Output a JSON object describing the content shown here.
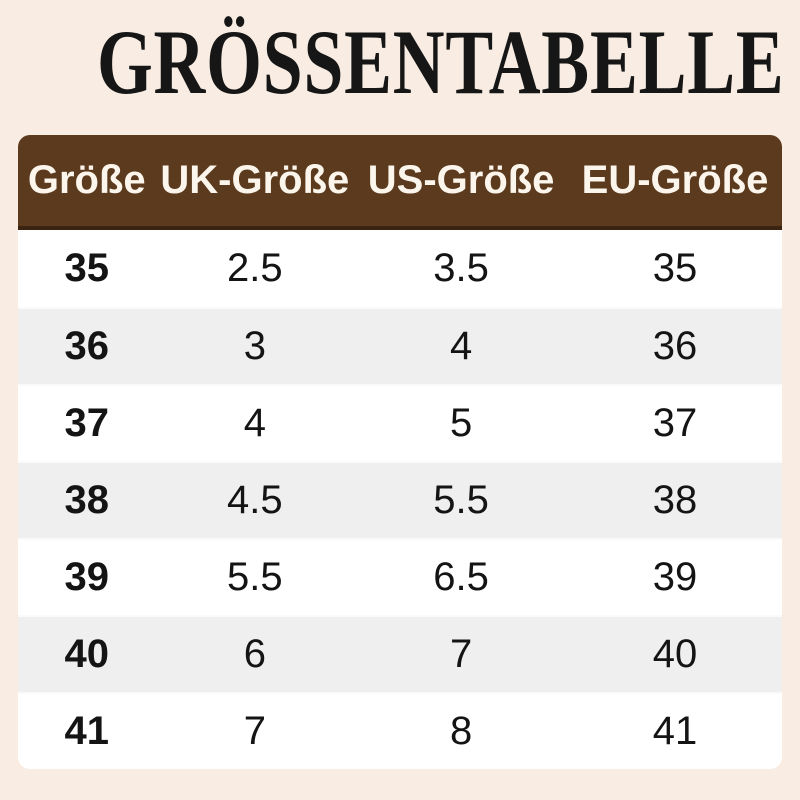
{
  "title": "GRÖSSENTABELLE",
  "colors": {
    "background": "#f8ece3",
    "header_bg": "#5b3a1e",
    "header_border_bottom": "#3a2411",
    "header_text": "#fbf5ec",
    "row_bg": "#ffffff",
    "row_alt_bg": "#efefef",
    "body_text": "#141414",
    "title_text": "#161616"
  },
  "chart_data": {
    "type": "table",
    "title": "GRÖSSENTABELLE",
    "columns": [
      "Größe",
      "UK-Größe",
      "US-Größe",
      "EU-Größe"
    ],
    "rows": [
      [
        "35",
        "2.5",
        "3.5",
        "35"
      ],
      [
        "36",
        "3",
        "4",
        "36"
      ],
      [
        "37",
        "4",
        "5",
        "37"
      ],
      [
        "38",
        "4.5",
        "5.5",
        "38"
      ],
      [
        "39",
        "5.5",
        "6.5",
        "39"
      ],
      [
        "40",
        "6",
        "7",
        "40"
      ],
      [
        "41",
        "7",
        "8",
        "41"
      ]
    ]
  }
}
